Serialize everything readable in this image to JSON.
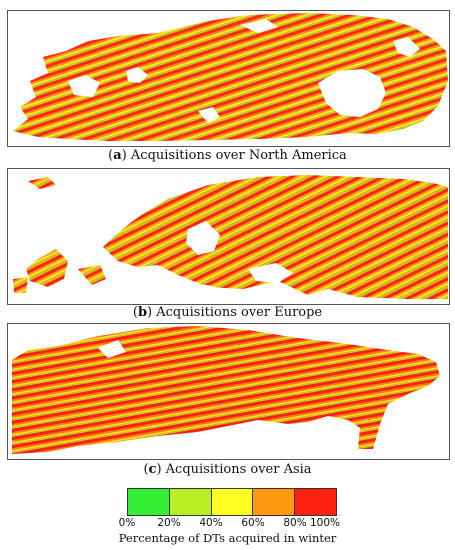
{
  "panels": [
    {
      "letter": "a",
      "label": " Acquisitions over North America"
    },
    {
      "letter": "b",
      "label": " Acquisitions over Europe"
    },
    {
      "letter": "c",
      "label": " Acquisitions over Asia"
    }
  ],
  "legend": {
    "title": "Percentage of DTs acquired in winter",
    "ticks": [
      "0%",
      "20%",
      "40%",
      "60%",
      "80%",
      "100%"
    ],
    "colors": [
      "#33ee33",
      "#bbee22",
      "#ffff22",
      "#ff9911",
      "#ff2211"
    ]
  }
}
